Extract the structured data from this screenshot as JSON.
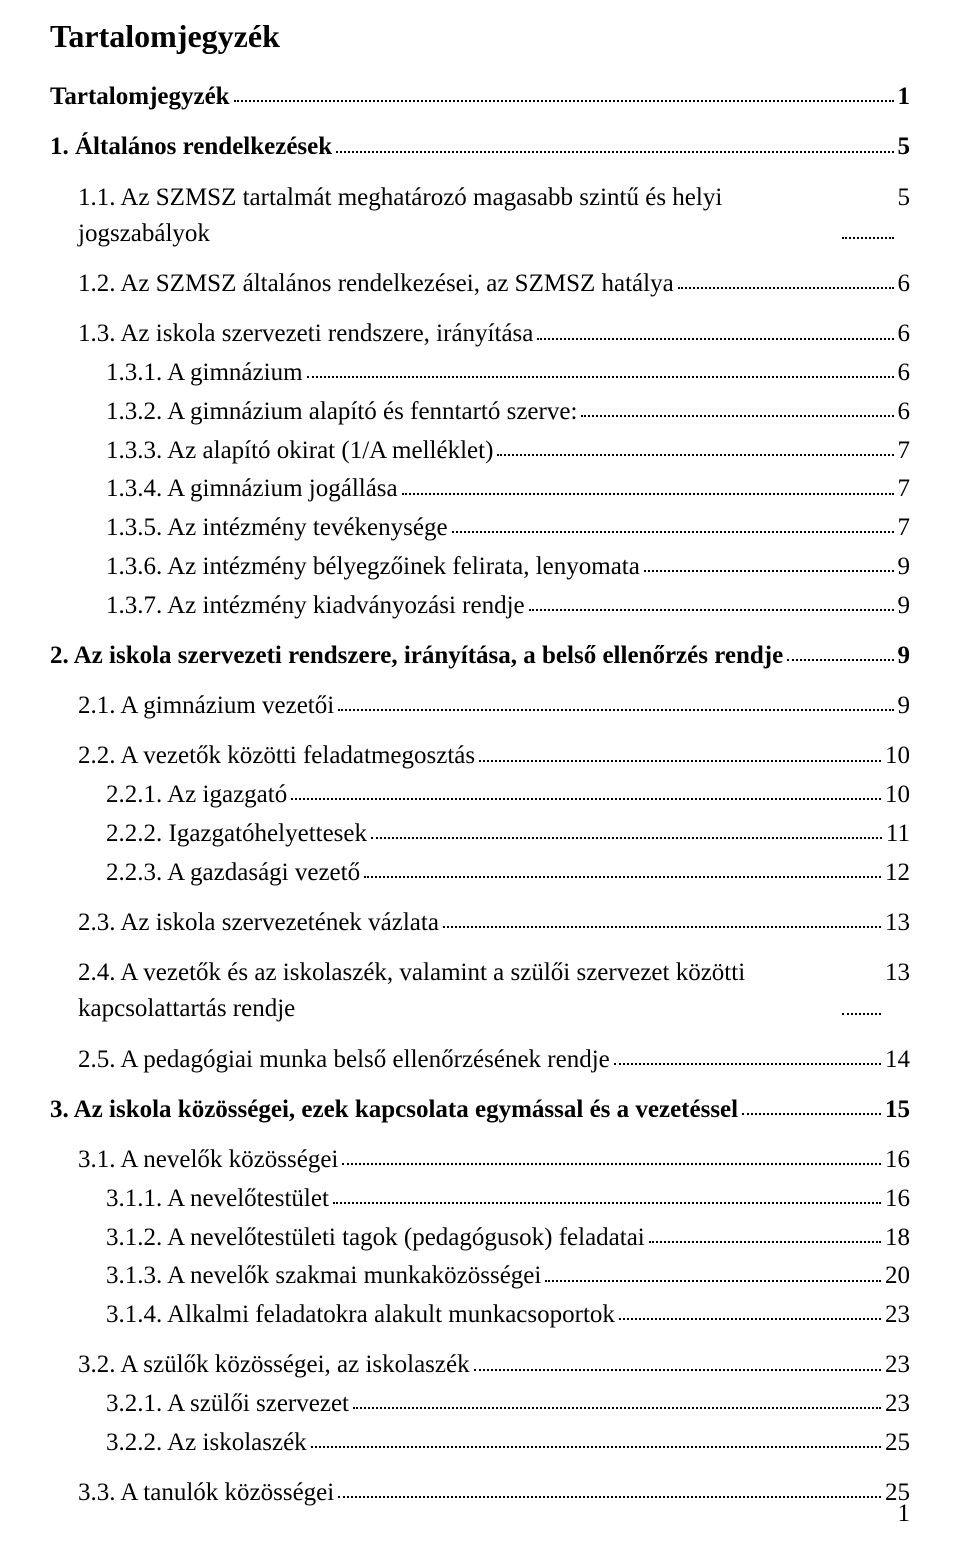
{
  "title": "Tartalomjegyzék",
  "page_number": "1",
  "toc": [
    {
      "label": "Tartalomjegyzék",
      "page": "1",
      "bold": true,
      "indent": 0,
      "spaced": false
    },
    {
      "label": "1. Általános rendelkezések",
      "page": "5",
      "bold": true,
      "indent": 0,
      "spaced": true
    },
    {
      "label": "1.1. Az SZMSZ tartalmát meghatározó magasabb szintű és helyi jogszabályok",
      "page": "5",
      "bold": false,
      "indent": 1,
      "spaced": true
    },
    {
      "label": "1.2. Az SZMSZ általános rendelkezései, az SZMSZ hatálya",
      "page": "6",
      "bold": false,
      "indent": 1,
      "spaced": true
    },
    {
      "label": "1.3. Az iskola szervezeti rendszere, irányítása",
      "page": "6",
      "bold": false,
      "indent": 1,
      "spaced": true
    },
    {
      "label": "1.3.1. A gimnázium",
      "page": "6",
      "bold": false,
      "indent": 2,
      "spaced": false
    },
    {
      "label": "1.3.2. A gimnázium alapító és fenntartó szerve:",
      "page": "6",
      "bold": false,
      "indent": 2,
      "spaced": false
    },
    {
      "label": "1.3.3. Az alapító okirat (1/A melléklet)",
      "page": "7",
      "bold": false,
      "indent": 2,
      "spaced": false
    },
    {
      "label": "1.3.4. A gimnázium jogállása",
      "page": "7",
      "bold": false,
      "indent": 2,
      "spaced": false
    },
    {
      "label": "1.3.5. Az intézmény tevékenysége",
      "page": "7",
      "bold": false,
      "indent": 2,
      "spaced": false
    },
    {
      "label": "1.3.6. Az intézmény bélyegzőinek felirata, lenyomata",
      "page": "9",
      "bold": false,
      "indent": 2,
      "spaced": false
    },
    {
      "label": "1.3.7. Az intézmény kiadványozási rendje",
      "page": "9",
      "bold": false,
      "indent": 2,
      "spaced": false
    },
    {
      "label": "2. Az iskola szervezeti rendszere, irányítása, a belső ellenőrzés rendje",
      "page": "9",
      "bold": true,
      "indent": 0,
      "spaced": true
    },
    {
      "label": "2.1. A gimnázium vezetői",
      "page": "9",
      "bold": false,
      "indent": 1,
      "spaced": true
    },
    {
      "label": "2.2. A vezetők közötti feladatmegosztás",
      "page": "10",
      "bold": false,
      "indent": 1,
      "spaced": true
    },
    {
      "label": "2.2.1. Az igazgató",
      "page": "10",
      "bold": false,
      "indent": 2,
      "spaced": false
    },
    {
      "label": "2.2.2. Igazgatóhelyettesek",
      "page": "11",
      "bold": false,
      "indent": 2,
      "spaced": false
    },
    {
      "label": "2.2.3. A gazdasági vezető",
      "page": "12",
      "bold": false,
      "indent": 2,
      "spaced": false
    },
    {
      "label": "2.3. Az iskola szervezetének vázlata",
      "page": "13",
      "bold": false,
      "indent": 1,
      "spaced": true
    },
    {
      "label": "2.4. A vezetők és az iskolaszék, valamint a szülői szervezet közötti kapcsolattartás rendje",
      "page": "13",
      "bold": false,
      "indent": 1,
      "spaced": true
    },
    {
      "label": "2.5. A pedagógiai munka belső ellenőrzésének rendje",
      "page": "14",
      "bold": false,
      "indent": 1,
      "spaced": true
    },
    {
      "label": "3. Az iskola közösségei, ezek kapcsolata egymással és a vezetéssel",
      "page": "15",
      "bold": true,
      "indent": 0,
      "spaced": true
    },
    {
      "label": "3.1. A nevelők közösségei",
      "page": "16",
      "bold": false,
      "indent": 1,
      "spaced": true
    },
    {
      "label": "3.1.1. A nevelőtestület",
      "page": "16",
      "bold": false,
      "indent": 2,
      "spaced": false
    },
    {
      "label": "3.1.2. A nevelőtestületi tagok (pedagógusok) feladatai",
      "page": "18",
      "bold": false,
      "indent": 2,
      "spaced": false
    },
    {
      "label": "3.1.3. A nevelők szakmai munkaközösségei",
      "page": "20",
      "bold": false,
      "indent": 2,
      "spaced": false
    },
    {
      "label": "3.1.4. Alkalmi feladatokra alakult munkacsoportok",
      "page": "23",
      "bold": false,
      "indent": 2,
      "spaced": false
    },
    {
      "label": "3.2. A szülők közösségei, az iskolaszék",
      "page": "23",
      "bold": false,
      "indent": 1,
      "spaced": true
    },
    {
      "label": "3.2.1. A szülői szervezet",
      "page": "23",
      "bold": false,
      "indent": 2,
      "spaced": false
    },
    {
      "label": "3.2.2. Az iskolaszék",
      "page": "25",
      "bold": false,
      "indent": 2,
      "spaced": false
    },
    {
      "label": "3.3. A tanulók közösségei",
      "page": "25",
      "bold": false,
      "indent": 1,
      "spaced": true
    }
  ]
}
